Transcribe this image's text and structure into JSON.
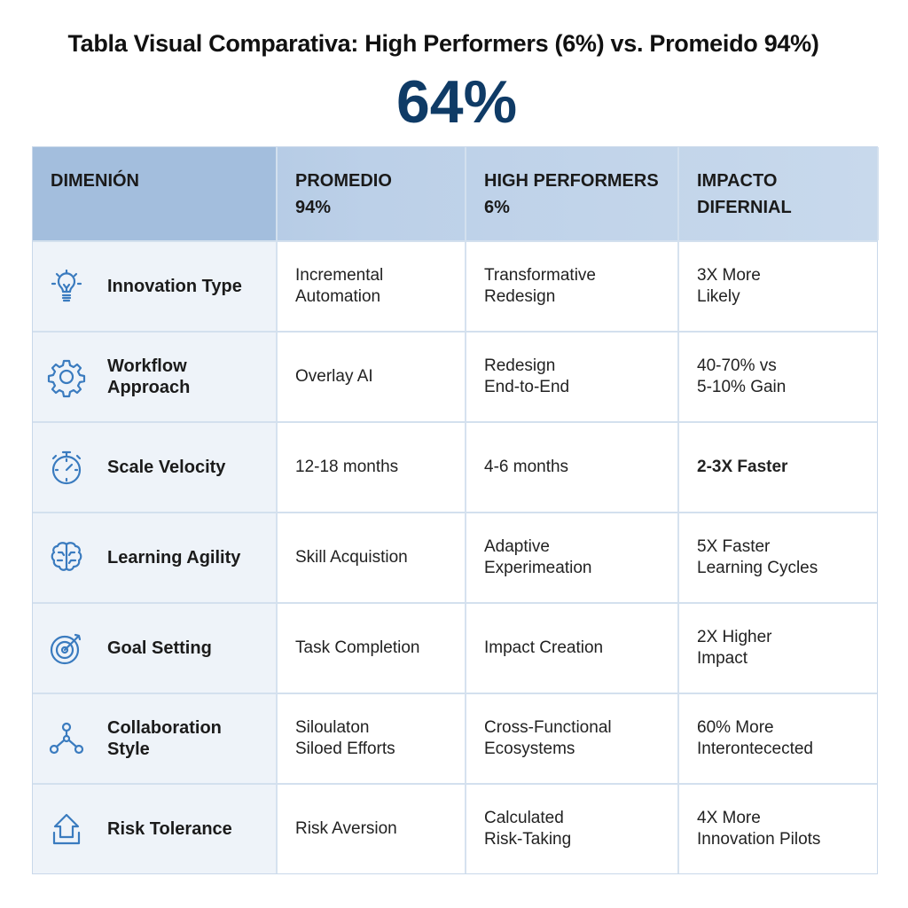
{
  "title": "Tabla Visual Comparativa: High Performers (6%) vs. Promeido  94%)",
  "headline_value": "64%",
  "colors": {
    "accent": "#0f3b66",
    "icon": "#3a7bbf",
    "header_bg": "#a8c2df"
  },
  "table": {
    "headers": [
      "DIMENIÓN",
      "PROMEDIO\n94%",
      "HIGH PERFORMERS\n6%",
      "IMPACTO\nDIFERNIAL"
    ],
    "rows": [
      {
        "icon": "lightbulb-icon",
        "dimension": "Innovation Type",
        "promedio": "Incremental\nAutomation",
        "high": "Transformative\nRedesign",
        "impact": "3X More\nLikely"
      },
      {
        "icon": "gear-icon",
        "dimension": "Workflow Approach",
        "promedio": "Overlay AI",
        "high": "Redesign\nEnd-to-End",
        "impact": "40-70% vs\n5-10% Gain"
      },
      {
        "icon": "stopwatch-icon",
        "dimension": "Scale Velocity",
        "promedio": "12-18 months",
        "high": "4-6 months",
        "impact": "2-3X Faster"
      },
      {
        "icon": "brain-icon",
        "dimension": "Learning Agility",
        "promedio": "Skill Acquistion",
        "high": "Adaptive\nExperimeation",
        "impact": "5X Faster\nLearning Cycles"
      },
      {
        "icon": "target-icon",
        "dimension": "Goal Setting",
        "promedio": "Task Completion",
        "high": "Impact Creation",
        "impact": "2X Higher\nImpact"
      },
      {
        "icon": "network-icon",
        "dimension": "Collaboration Style",
        "promedio": "Siloulaton\nSiloed Efforts",
        "high": "Cross-Functional\nEcosystems",
        "impact": "60% More\nInterontecected"
      },
      {
        "icon": "upload-icon",
        "dimension": "Risk Tolerance",
        "promedio": "Risk Aversion",
        "high": "Calculated\nRisk-Taking",
        "impact": "4X More\nInnovation Pilots"
      }
    ]
  }
}
